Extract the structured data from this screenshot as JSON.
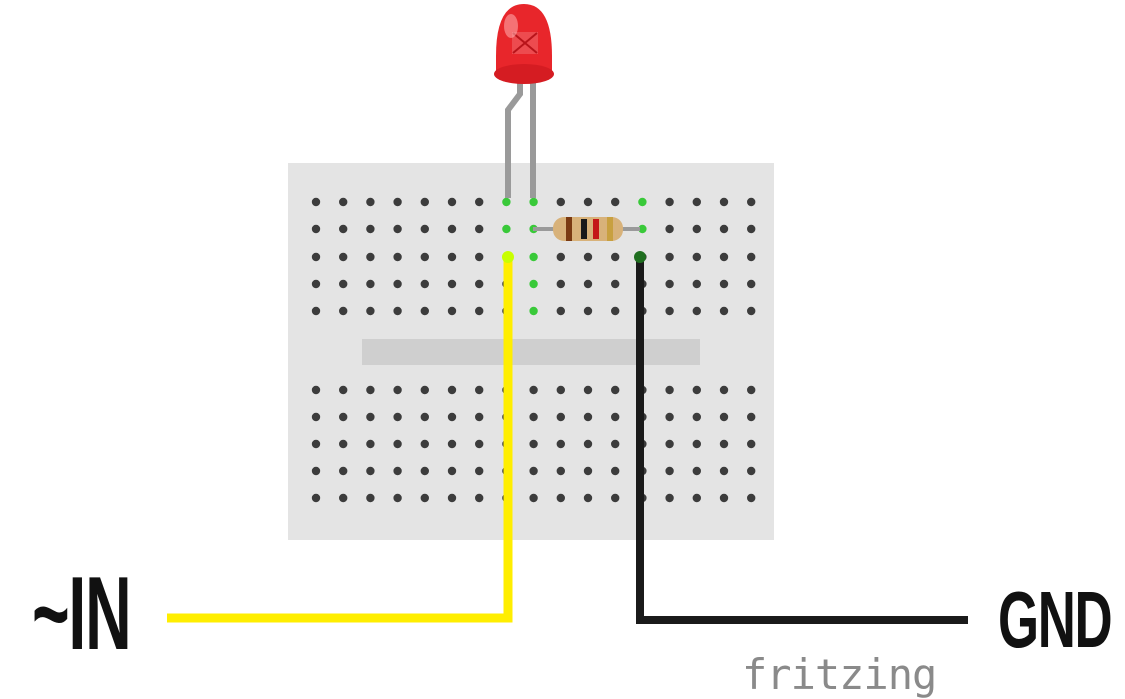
{
  "labels": {
    "input": "~IN",
    "ground": "GND"
  },
  "brand": {
    "text": "fritzing"
  },
  "colors": {
    "board": "#e4e4e4",
    "channel": "#cfcfcf",
    "hole": "#3c3c3c",
    "hole_active": "#39c939",
    "hole_input": "#c8ff00",
    "hole_ground": "#1f6e1f",
    "wire_input": "#ffee00",
    "wire_ground": "#1a1a1a",
    "led": "#e8262b",
    "led_leg": "#9a9a9a",
    "resistor_body": "#d8b27a",
    "brand": "#8a8a8a"
  },
  "components": {
    "led": {
      "color": "red"
    },
    "resistor": {
      "bands": [
        "#7a3a12",
        "#1a1a1a",
        "#c41818",
        "#c8a040"
      ]
    }
  }
}
